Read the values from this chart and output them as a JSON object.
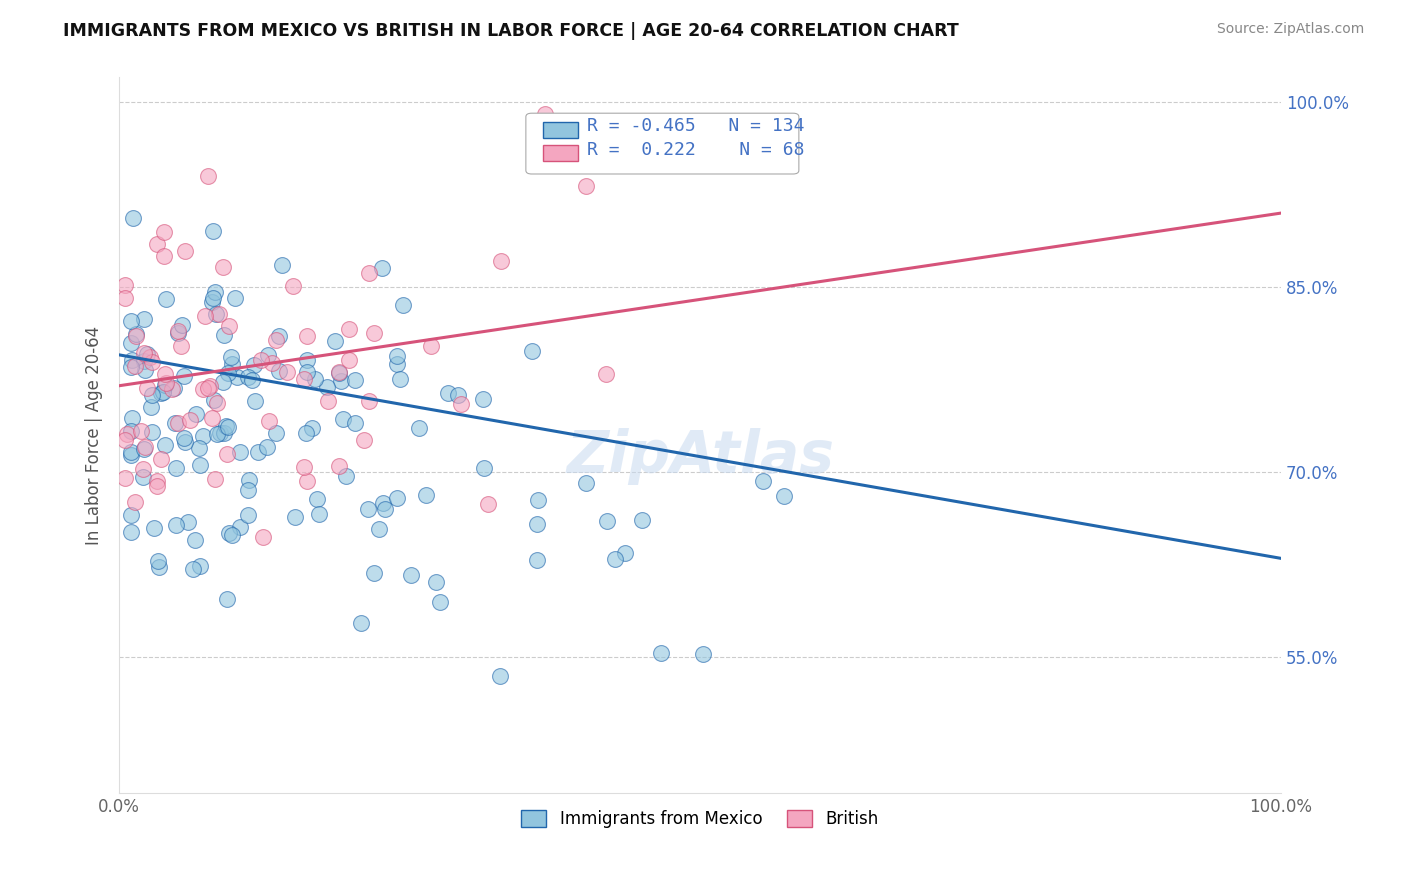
{
  "title": "IMMIGRANTS FROM MEXICO VS BRITISH IN LABOR FORCE | AGE 20-64 CORRELATION CHART",
  "source": "Source: ZipAtlas.com",
  "ylabel": "In Labor Force | Age 20-64",
  "xlim": [
    0.0,
    1.0
  ],
  "ylim": [
    0.44,
    1.02
  ],
  "legend_blue_label": "Immigrants from Mexico",
  "legend_pink_label": "British",
  "R_blue": -0.465,
  "N_blue": 134,
  "R_pink": 0.222,
  "N_pink": 68,
  "blue_color": "#92c5de",
  "pink_color": "#f4a6c0",
  "blue_line_color": "#2166ac",
  "pink_line_color": "#d6537a",
  "yticks": [
    0.55,
    0.7,
    0.85,
    1.0
  ],
  "ytick_labels": [
    "55.0%",
    "70.0%",
    "85.0%",
    "100.0%"
  ],
  "blue_trend": [
    0.795,
    0.63
  ],
  "pink_trend": [
    0.77,
    0.91
  ],
  "watermark": "ZipAtlas"
}
